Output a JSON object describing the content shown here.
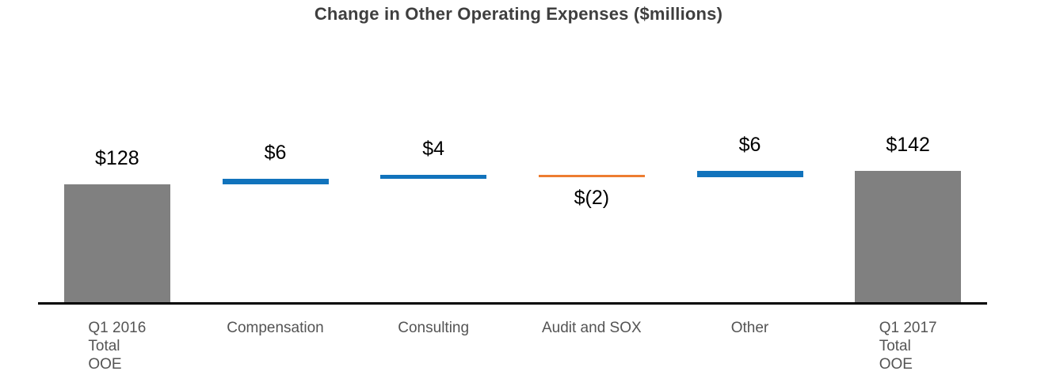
{
  "title": "Change in Other Operating Expenses ($millions)",
  "chart_data": {
    "type": "bar",
    "subtype": "waterfall",
    "title": "Change in Other Operating Expenses ($millions)",
    "xlabel": "",
    "ylabel": "",
    "baseline": 0,
    "ylim": [
      0,
      160
    ],
    "gridlines": false,
    "y_axis_visible": false,
    "x_axis_line_visible": true,
    "legend": "none",
    "categories": [
      "Q1 2016 Total OOE",
      "Compensation",
      "Consulting",
      "Audit and SOX",
      "Other",
      "Q1 2017 Total OOE"
    ],
    "items": [
      {
        "label_lines": [
          "Q1 2016",
          "Total",
          "OOE"
        ],
        "value": 128,
        "kind": "total",
        "value_label": "$128",
        "label_position": "above"
      },
      {
        "label_lines": [
          "Compensation"
        ],
        "value": 6,
        "kind": "increase",
        "value_label": "$6",
        "label_position": "above"
      },
      {
        "label_lines": [
          "Consulting"
        ],
        "value": 4,
        "kind": "increase",
        "value_label": "$4",
        "label_position": "above"
      },
      {
        "label_lines": [
          "Audit and SOX"
        ],
        "value": -2,
        "kind": "decrease",
        "value_label": "$(2)",
        "label_position": "below"
      },
      {
        "label_lines": [
          "Other"
        ],
        "value": 6,
        "kind": "increase",
        "value_label": "$6",
        "label_position": "above"
      },
      {
        "label_lines": [
          "Q1 2017",
          "Total",
          "OOE"
        ],
        "value": 142,
        "kind": "total",
        "value_label": "$142",
        "label_position": "above"
      }
    ],
    "running_totals": [
      128,
      134,
      138,
      136,
      142,
      142
    ],
    "colors": {
      "total": "#808080",
      "increase": "#1173BC",
      "decrease": "#ED7D31",
      "axis": "#000000",
      "title_text": "#3f3f3f",
      "value_text": "#000000",
      "category_text": "#545454",
      "background": "#ffffff"
    }
  }
}
